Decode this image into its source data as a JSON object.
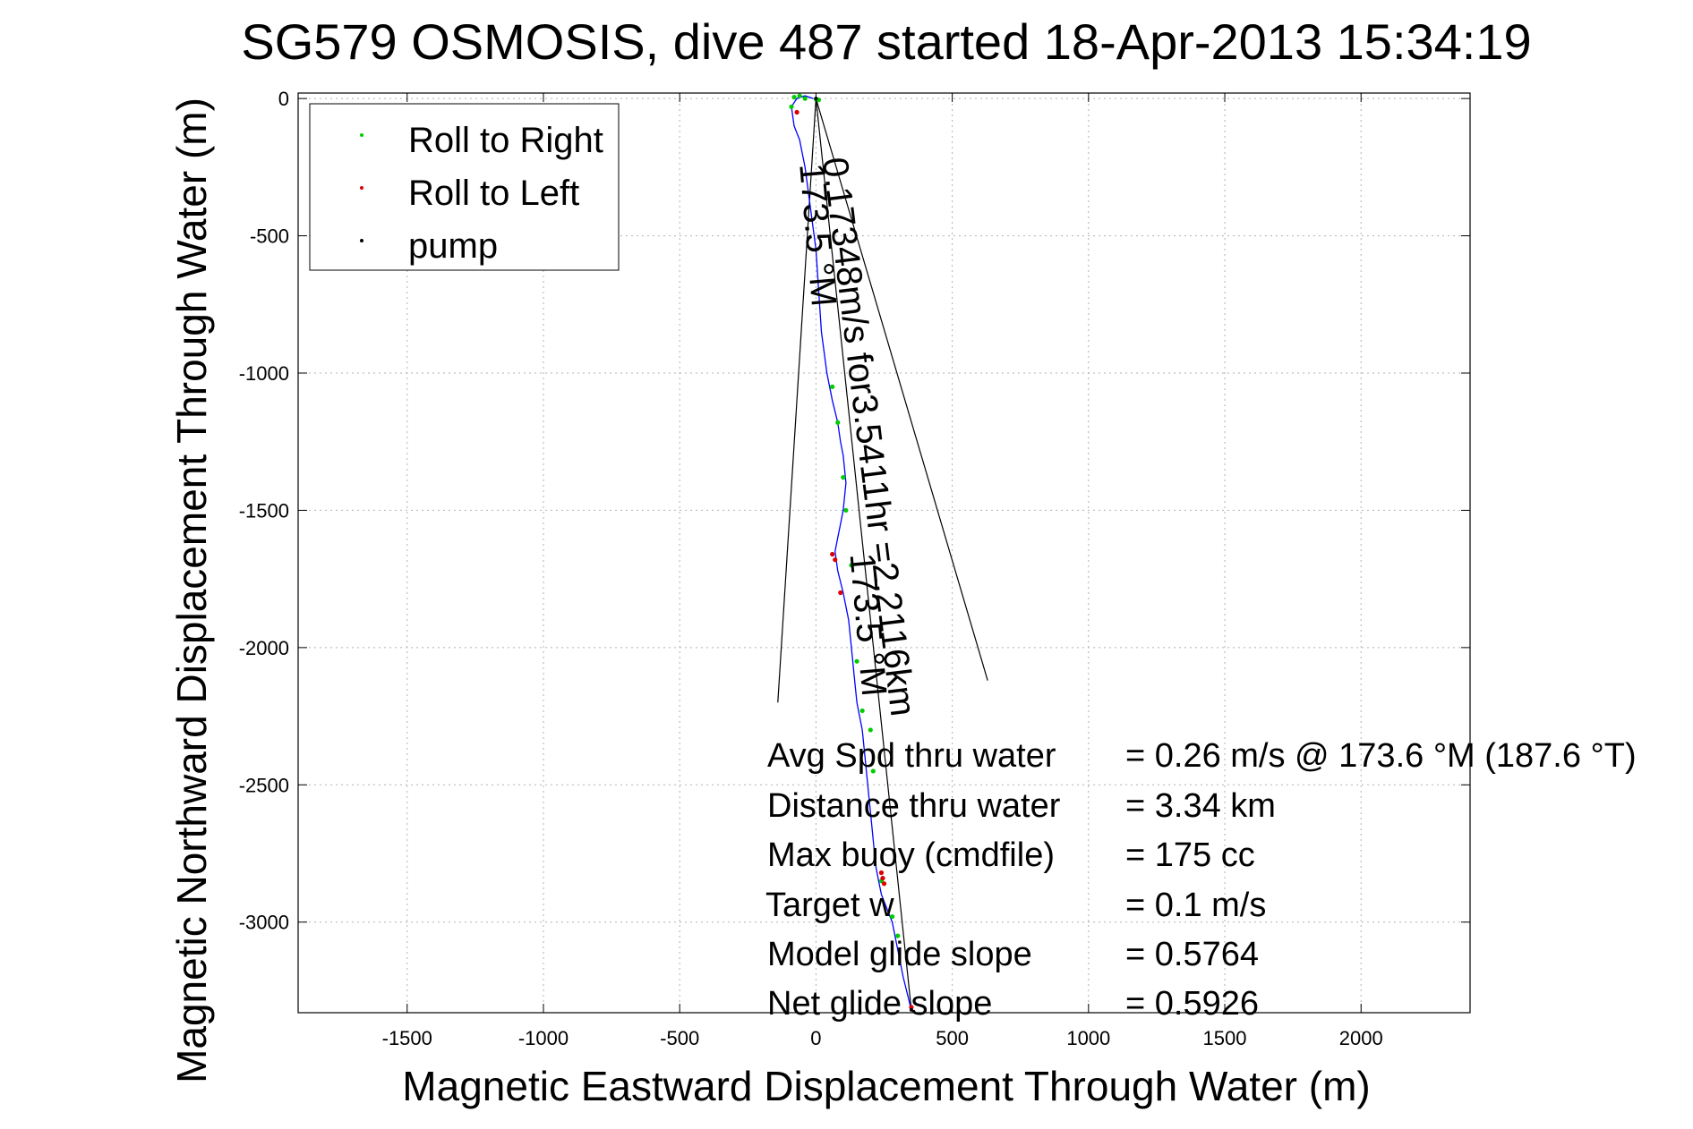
{
  "chart_data": {
    "type": "line",
    "title": "SG579 OSMOSIS, dive 487 started 18-Apr-2013 15:34:19",
    "xlabel": "Magnetic Eastward Displacement Through Water (m)",
    "ylabel": "Magnetic Northward Displacement Through Water (m)",
    "xlim": [
      -1900,
      2400
    ],
    "ylim": [
      -3330,
      20
    ],
    "xticks": [
      -1500,
      -1000,
      -500,
      0,
      500,
      1000,
      1500,
      2000
    ],
    "xtick_labels": [
      "-1500",
      "-1000",
      "-500",
      "0",
      "500",
      "1000",
      "1500",
      "2000"
    ],
    "yticks": [
      0,
      -500,
      -1000,
      -1500,
      -2000,
      -2500,
      -3000
    ],
    "ytick_labels": [
      "0",
      "-500",
      "-1000",
      "-1500",
      "-2000",
      "-2500",
      "-3000"
    ],
    "grid": true,
    "legend_position": "top-left",
    "legend": [
      {
        "label": "Roll to Right",
        "color": "#00cc00"
      },
      {
        "label": "Roll to Left",
        "color": "#dd0000"
      },
      {
        "label": "pump",
        "color": "#000000"
      }
    ],
    "track": {
      "name": "glider track",
      "color": "#0000ff",
      "x": [
        -10,
        -40,
        -70,
        -90,
        -80,
        -60,
        -40,
        -20,
        0,
        10,
        20,
        40,
        60,
        80,
        90,
        100,
        110,
        100,
        90,
        80,
        70,
        80,
        100,
        120,
        130,
        140,
        150,
        160,
        170,
        180,
        190,
        200,
        210,
        220,
        230,
        240,
        260,
        280,
        300,
        320,
        340,
        350
      ],
      "y": [
        0,
        10,
        0,
        -30,
        -100,
        -150,
        -250,
        -400,
        -550,
        -700,
        -850,
        -1000,
        -1100,
        -1180,
        -1250,
        -1300,
        -1400,
        -1500,
        -1550,
        -1600,
        -1650,
        -1720,
        -1800,
        -1900,
        -2000,
        -2100,
        -2200,
        -2250,
        -2300,
        -2400,
        -2500,
        -2600,
        -2700,
        -2800,
        -2850,
        -2900,
        -2950,
        -3000,
        -3100,
        -3200,
        -3280,
        -3320
      ]
    },
    "roll_right_points": {
      "color": "#00cc00",
      "x": [
        -90,
        -80,
        -60,
        -40,
        0,
        10,
        60,
        80,
        100,
        110,
        130,
        150,
        170,
        200,
        210,
        240,
        280,
        300
      ],
      "y": [
        -30,
        5,
        10,
        0,
        -2,
        -5,
        -1050,
        -1180,
        -1380,
        -1500,
        -1700,
        -2050,
        -2230,
        -2300,
        -2450,
        -2850,
        -2980,
        -3050
      ]
    },
    "roll_left_points": {
      "color": "#dd0000",
      "x": [
        -70,
        60,
        70,
        90,
        240,
        245,
        250,
        350
      ],
      "y": [
        -50,
        -1660,
        -1680,
        -1800,
        -2820,
        -2840,
        -2860,
        -3310
      ]
    },
    "pump_points": {
      "color": "#000000",
      "x": [
        0,
        350
      ],
      "y": [
        0,
        -3320
      ]
    },
    "heading_lines": [
      {
        "x": [
          0,
          -140
        ],
        "y": [
          0,
          -2200
        ]
      },
      {
        "x": [
          0,
          630
        ],
        "y": [
          0,
          -2120
        ]
      },
      {
        "x": [
          0,
          350
        ],
        "y": [
          0,
          -3320
        ]
      }
    ],
    "annotations": [
      {
        "text": "0.17348m/s for3.5411hr =2.2116km",
        "x": 25,
        "y": -220,
        "rotation_deg": 83
      },
      {
        "text": "173.5 °M",
        "x": -60,
        "y": -240,
        "rotation_deg": 85
      },
      {
        "text": "173.5 °M",
        "x": 125,
        "y": -1660,
        "rotation_deg": 85
      }
    ],
    "summary": [
      {
        "label": "Avg Spd thru water",
        "value": "=  0.26 m/s @ 173.6 °M (187.6 °T)"
      },
      {
        "label": "Distance thru water",
        "value": "=  3.34 km"
      },
      {
        "label": "Max buoy (cmdfile)",
        "value": "= 175 cc"
      },
      {
        "label": "Target w",
        "value": "= 0.1 m/s"
      },
      {
        "label": "Model glide slope",
        "value": "= 0.5764"
      },
      {
        "label": "Net glide slope",
        "value": "= 0.5926"
      }
    ]
  }
}
